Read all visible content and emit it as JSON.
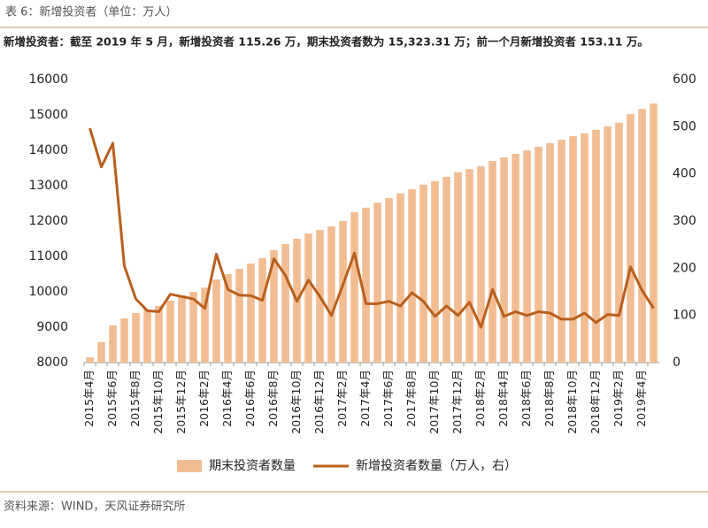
{
  "header": {
    "title": "表 6：新增投资者（单位：万人）",
    "subtitle": "新增投资者：截至 2019 年 5 月，新增投资者 115.26 万，期末投资者数为 15,323.31 万；前一个月新增投资者 153.11 万。"
  },
  "chart_data": {
    "type": "combo",
    "categories": [
      "2015年4月",
      null,
      "2015年6月",
      null,
      "2015年8月",
      null,
      "2015年10月",
      null,
      "2015年12月",
      null,
      "2016年2月",
      null,
      "2016年4月",
      null,
      "2016年6月",
      null,
      "2016年8月",
      null,
      "2016年10月",
      null,
      "2016年12月",
      null,
      "2017年2月",
      null,
      "2017年4月",
      null,
      "2017年6月",
      null,
      "2017年8月",
      null,
      "2017年10月",
      null,
      "2017年12月",
      null,
      "2018年2月",
      null,
      "2018年4月",
      null,
      "2018年6月",
      null,
      "2018年8月",
      null,
      "2018年10月",
      null,
      "2018年12月",
      null,
      "2019年2月",
      null,
      "2019年4月",
      null
    ],
    "series": [
      {
        "name": "期末投资者数量",
        "type": "bar",
        "color": "#f2bd93",
        "axis": "y",
        "values": [
          8150,
          8580,
          9050,
          9250,
          9400,
          9500,
          9600,
          9750,
          9900,
          10000,
          10120,
          10350,
          10500,
          10650,
          10800,
          10950,
          11180,
          11350,
          11500,
          11650,
          11750,
          11850,
          12000,
          12250,
          12380,
          12520,
          12650,
          12780,
          12900,
          13030,
          13130,
          13250,
          13380,
          13470,
          13550,
          13700,
          13800,
          13900,
          14000,
          14100,
          14200,
          14300,
          14400,
          14480,
          14580,
          14680,
          14780,
          15020,
          15170,
          15323.31
        ]
      },
      {
        "name": "新增投资者数量（万人，右）",
        "type": "line",
        "color": "#b8601e",
        "axis": "y2",
        "values": [
          497,
          415,
          465,
          205,
          135,
          110,
          108,
          145,
          140,
          135,
          115,
          230,
          155,
          143,
          142,
          132,
          220,
          185,
          130,
          175,
          140,
          100,
          165,
          232,
          125,
          125,
          130,
          120,
          148,
          130,
          98,
          120,
          100,
          128,
          75,
          155,
          98,
          108,
          100,
          108,
          105,
          92,
          92,
          105,
          85,
          102,
          100,
          203,
          153.11,
          115.26
        ]
      }
    ],
    "ylim": [
      8000,
      16000
    ],
    "yticks": [
      8000,
      9000,
      10000,
      11000,
      12000,
      13000,
      14000,
      15000,
      16000
    ],
    "y2lim": [
      0,
      600
    ],
    "y2ticks": [
      0,
      100,
      200,
      300,
      400,
      500,
      600
    ]
  },
  "footer": {
    "source": "资料来源：WIND，天风证券研究所"
  }
}
